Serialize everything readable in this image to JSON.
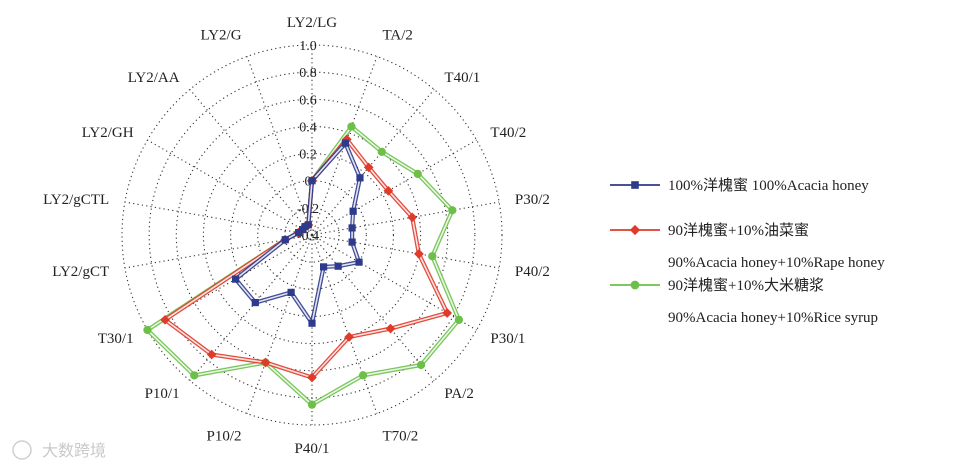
{
  "chart_data": {
    "type": "radar",
    "axes": [
      "LY2/LG",
      "TA/2",
      "T40/1",
      "T40/2",
      "P30/2",
      "P40/2",
      "P30/1",
      "PA/2",
      "T70/2",
      "P40/1",
      "P10/2",
      "P10/1",
      "T30/1",
      "LY2/gCT",
      "LY2/gCTL",
      "LY2/GH",
      "LY2/AA",
      "LY2/G"
    ],
    "radial_ticks": [
      "-0.4",
      "-0.2",
      "0",
      "0.2",
      "0.4",
      "0.6",
      "0.8",
      "1.0"
    ],
    "range": [
      -0.4,
      1.0
    ],
    "grid": true,
    "series": [
      {
        "name": "100%洋槐蜜 100%Acacia honey",
        "color": "#2e3a8c",
        "marker": "square",
        "values": [
          0.0,
          0.32,
          0.15,
          -0.05,
          -0.1,
          -0.1,
          0.0,
          -0.1,
          -0.15,
          0.25,
          0.05,
          0.25,
          0.25,
          -0.2,
          -0.3,
          -0.32,
          -0.32,
          -0.32
        ]
      },
      {
        "name": "90洋槐蜜+10%油菜蜜",
        "sublabel": "90%Acacia honey+10%Rape honey",
        "color": "#e03a2a",
        "marker": "diamond",
        "values": [
          0.0,
          0.35,
          0.25,
          0.25,
          0.35,
          0.4,
          0.75,
          0.5,
          0.4,
          0.65,
          0.6,
          0.75,
          0.85,
          -0.2,
          -0.3,
          -0.32,
          -0.32,
          -0.32
        ]
      },
      {
        "name": "90洋槐蜜+10%大米糖浆",
        "sublabel": "90%Acacia honey+10%Rice syrup",
        "color": "#6cc04a",
        "marker": "circle",
        "values": [
          0.0,
          0.45,
          0.4,
          0.5,
          0.65,
          0.5,
          0.85,
          0.85,
          0.7,
          0.85,
          0.6,
          0.95,
          1.0,
          -0.2,
          -0.3,
          -0.32,
          -0.32,
          -0.32
        ]
      }
    ],
    "legend_position": "right"
  },
  "watermark": "大数跨境"
}
